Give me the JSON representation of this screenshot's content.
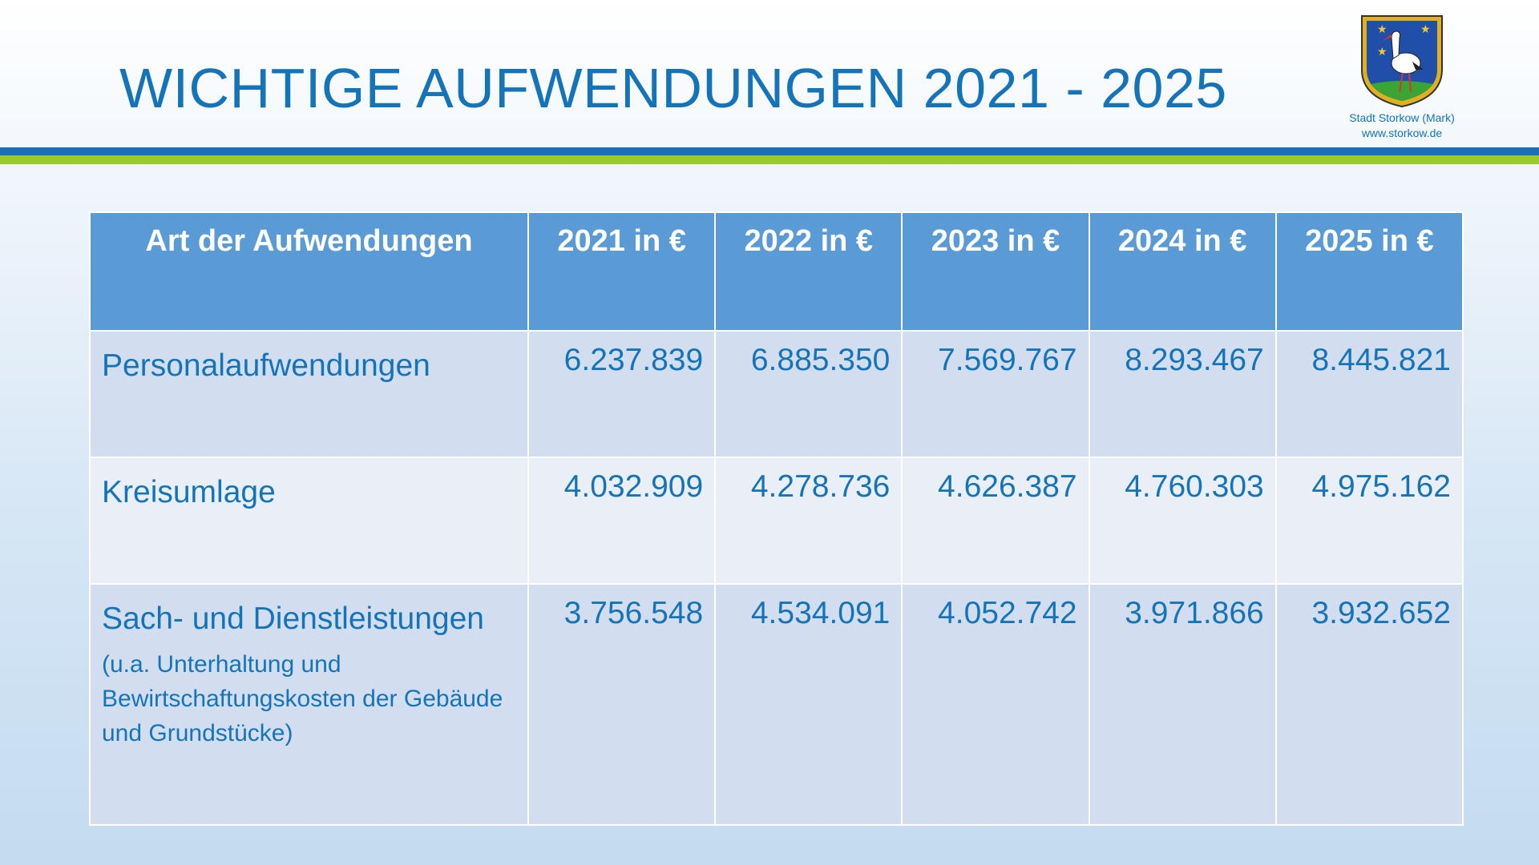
{
  "header": {
    "title": "WICHTIGE AUFWENDUNGEN 2021 - 2025",
    "logo_caption": [
      "Stadt Storkow (Mark)",
      "www.storkow.de"
    ]
  },
  "table": {
    "columns": [
      "Art der Aufwendungen",
      "2021 in €",
      "2022 in €",
      "2023 in €",
      "2024 in €",
      "2025 in €"
    ],
    "rows": [
      {
        "label": "Personalaufwendungen",
        "values": [
          "6.237.839",
          "6.885.350",
          "7.569.767",
          "8.293.467",
          "8.445.821"
        ]
      },
      {
        "label": "Kreisumlage",
        "values": [
          "4.032.909",
          "4.278.736",
          "4.626.387",
          "4.760.303",
          "4.975.162"
        ]
      },
      {
        "label": "Sach- und Dienstleistungen",
        "note": "(u.a. Unterhaltung und Bewirtschaftungskosten der Gebäude und Grundstücke)",
        "values": [
          "3.756.548",
          "4.534.091",
          "4.052.742",
          "3.971.866",
          "3.932.652"
        ]
      }
    ]
  }
}
